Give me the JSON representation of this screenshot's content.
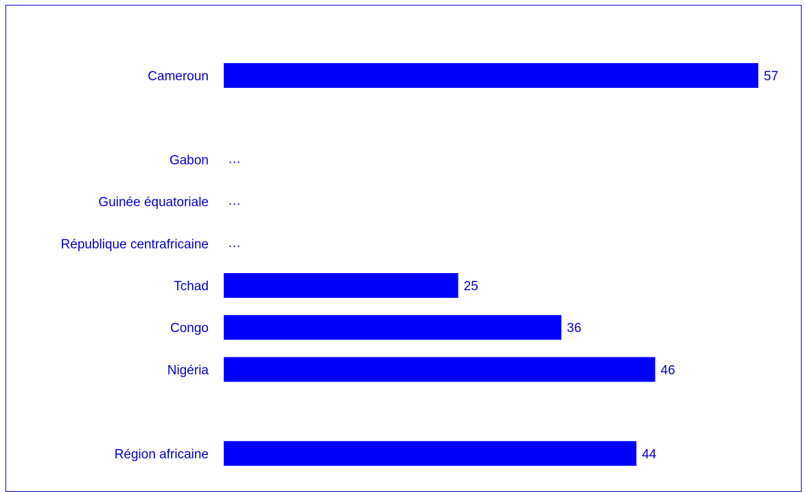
{
  "chart_data": {
    "type": "bar",
    "orientation": "horizontal",
    "title": "",
    "xlabel": "",
    "ylabel": "",
    "xlim": [
      0,
      57
    ],
    "grid": false,
    "legend": "none",
    "bar_color": "#0000ff",
    "text_color": "#0000cc",
    "missing_marker": "…",
    "categories": [
      "Cameroun",
      "",
      "Gabon",
      "Guinée équatoriale",
      "République centrafricaine",
      "Tchad",
      "Congo",
      "Nigéria",
      "",
      "Région africaine"
    ],
    "values": [
      57,
      null,
      null,
      null,
      null,
      25,
      36,
      46,
      null,
      44
    ],
    "value_labels": [
      "57",
      "",
      "…",
      "…",
      "…",
      "25",
      "36",
      "46",
      "",
      "44"
    ]
  }
}
